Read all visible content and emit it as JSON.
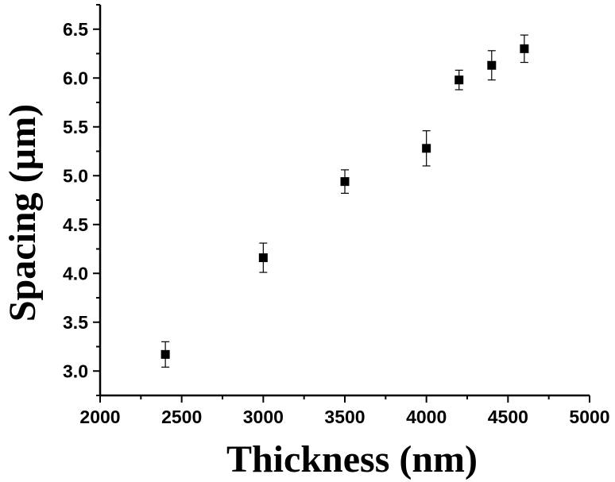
{
  "chart_data": {
    "type": "scatter",
    "title": "",
    "xlabel": "Thickness (nm)",
    "ylabel": "Spacing (µm)",
    "xlim": [
      2000,
      5000
    ],
    "ylim": [
      2.75,
      6.75
    ],
    "xticks": [
      2000,
      2500,
      3000,
      3500,
      4000,
      4500,
      5000
    ],
    "yticks": [
      3.0,
      3.5,
      4.0,
      4.5,
      5.0,
      5.5,
      6.0,
      6.5
    ],
    "xtick_labels": [
      "2000",
      "2500",
      "3000",
      "3500",
      "4000",
      "4500",
      "5000"
    ],
    "ytick_labels": [
      "3.0",
      "3.5",
      "4.0",
      "4.5",
      "5.0",
      "5.5",
      "6.0",
      "6.5"
    ],
    "grid": false,
    "legend": "none",
    "marker": "square",
    "marker_color": "#000000",
    "series": [
      {
        "x": [
          2400,
          3000,
          3500,
          4000,
          4200,
          4400,
          4600
        ],
        "y": [
          3.17,
          4.16,
          4.94,
          5.28,
          5.98,
          6.13,
          6.3
        ],
        "error": [
          0.13,
          0.15,
          0.12,
          0.18,
          0.1,
          0.15,
          0.14
        ]
      }
    ]
  }
}
